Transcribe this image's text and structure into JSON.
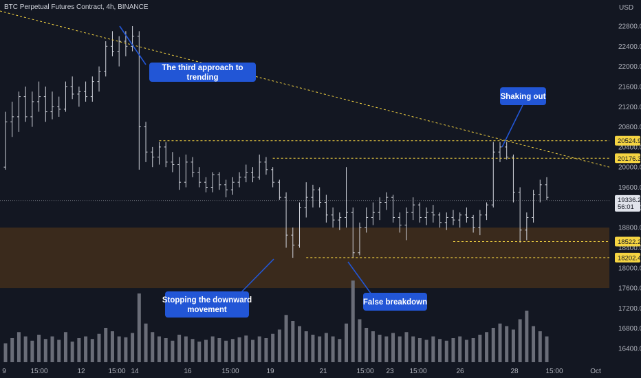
{
  "header": {
    "title": "BTC Perpetual Futures Contract, 4h, BINANCE",
    "currency": "USD"
  },
  "colors": {
    "background": "#131722",
    "bar": "#d1d4dc",
    "volume": "#6a6d78",
    "zone": "#3a2a1c",
    "dashed_line": "#f5d442",
    "annotation": "#2256d6",
    "price_tag_yellow": "#f5d442",
    "current_price_tag": "#e0e3eb"
  },
  "chart_data": {
    "type": "ohlc",
    "symbol": "BTC Perpetual Futures Contract",
    "interval": "4h",
    "exchange": "BINANCE",
    "ylim": [
      16200,
      22900
    ],
    "y_ticks": [
      16400,
      16800,
      17200,
      17600,
      18000,
      18400,
      18800,
      19200,
      19600,
      20000,
      20400,
      20800,
      21200,
      21600,
      22000,
      22400,
      22800
    ],
    "x_ticks": [
      "9",
      "15:00",
      "12",
      "15:00",
      "14",
      "16",
      "15:00",
      "19",
      "21",
      "15:00",
      "23",
      "15:00",
      "26",
      "28",
      "15:00",
      "Oct"
    ],
    "price_levels": [
      20524.9,
      20176.3,
      18522.2,
      18202.4
    ],
    "current_price": {
      "value": "19336.2",
      "countdown": "56:01"
    },
    "support_zone": [
      17600,
      18800
    ],
    "trendline": {
      "from_price": 23100,
      "to_price": 20000
    },
    "annotations": [
      "The third approach to trending",
      "Shaking out",
      "Stopping the downward movement",
      "False breakdown"
    ],
    "ohlc": [
      [
        20000,
        21100,
        19950,
        20900
      ],
      [
        20900,
        21300,
        20600,
        21000
      ],
      [
        21000,
        21500,
        20700,
        21400
      ],
      [
        21400,
        21600,
        20900,
        21000
      ],
      [
        21000,
        21500,
        20800,
        21300
      ],
      [
        21300,
        21700,
        21100,
        21400
      ],
      [
        21400,
        21600,
        20900,
        21100
      ],
      [
        21100,
        21500,
        20950,
        21200
      ],
      [
        21200,
        21400,
        21000,
        21150
      ],
      [
        21150,
        21700,
        21100,
        21600
      ],
      [
        21600,
        21800,
        21350,
        21450
      ],
      [
        21450,
        21600,
        21200,
        21500
      ],
      [
        21500,
        21700,
        21300,
        21400
      ],
      [
        21400,
        21800,
        21300,
        21700
      ],
      [
        21700,
        22000,
        21500,
        21900
      ],
      [
        21900,
        22500,
        21800,
        22400
      ],
      [
        22400,
        22700,
        22200,
        22300
      ],
      [
        22300,
        22600,
        22000,
        22500
      ],
      [
        22500,
        22700,
        22200,
        22400
      ],
      [
        22400,
        22800,
        22300,
        22600
      ],
      [
        22600,
        22700,
        19950,
        20800
      ],
      [
        20800,
        20900,
        20100,
        20300
      ],
      [
        20300,
        20400,
        20000,
        20200
      ],
      [
        20200,
        20500,
        20050,
        20400
      ],
      [
        20400,
        20500,
        20000,
        20100
      ],
      [
        20100,
        20300,
        19900,
        20050
      ],
      [
        20050,
        20200,
        19550,
        19700
      ],
      [
        19700,
        20250,
        19600,
        20100
      ],
      [
        20100,
        20200,
        19800,
        19900
      ],
      [
        19900,
        20000,
        19600,
        19700
      ],
      [
        19700,
        19800,
        19500,
        19600
      ],
      [
        19600,
        19900,
        19500,
        19850
      ],
      [
        19850,
        19900,
        19550,
        19650
      ],
      [
        19650,
        19750,
        19400,
        19550
      ],
      [
        19550,
        19800,
        19450,
        19700
      ],
      [
        19700,
        19900,
        19600,
        19800
      ],
      [
        19800,
        20050,
        19700,
        19900
      ],
      [
        19900,
        20000,
        19700,
        19800
      ],
      [
        19800,
        20250,
        19750,
        20100
      ],
      [
        20100,
        20200,
        19850,
        19950
      ],
      [
        19950,
        20000,
        19600,
        19700
      ],
      [
        19700,
        19750,
        19350,
        19400
      ],
      [
        19400,
        19500,
        18400,
        18650
      ],
      [
        18650,
        18800,
        18200,
        18450
      ],
      [
        18450,
        19300,
        18400,
        19200
      ],
      [
        19200,
        19700,
        19000,
        19400
      ],
      [
        19400,
        19650,
        19200,
        19550
      ],
      [
        19550,
        19600,
        19200,
        19300
      ],
      [
        19300,
        19450,
        18900,
        19050
      ],
      [
        19050,
        19200,
        18800,
        18950
      ],
      [
        18950,
        19100,
        18750,
        19000
      ],
      [
        19000,
        20000,
        18800,
        19100
      ],
      [
        19100,
        19200,
        18200,
        18300
      ],
      [
        18300,
        18900,
        18250,
        18800
      ],
      [
        18800,
        19200,
        18700,
        19000
      ],
      [
        19000,
        19300,
        18850,
        19100
      ],
      [
        19100,
        19400,
        18950,
        19300
      ],
      [
        19300,
        19500,
        19150,
        19400
      ],
      [
        19400,
        19450,
        18900,
        19000
      ],
      [
        19000,
        19100,
        18700,
        18850
      ],
      [
        18850,
        19200,
        18550,
        19100
      ],
      [
        19100,
        19400,
        18950,
        19250
      ],
      [
        19250,
        19300,
        18900,
        19000
      ],
      [
        19000,
        19200,
        18850,
        19100
      ],
      [
        19100,
        19250,
        18900,
        19050
      ],
      [
        19050,
        19100,
        18800,
        18900
      ],
      [
        18900,
        19100,
        18750,
        19000
      ],
      [
        19000,
        19150,
        18850,
        18950
      ],
      [
        18950,
        19100,
        18800,
        19050
      ],
      [
        19050,
        19200,
        18900,
        19000
      ],
      [
        19000,
        19050,
        18700,
        18800
      ],
      [
        18800,
        19150,
        18650,
        19050
      ],
      [
        19050,
        19300,
        18950,
        19250
      ],
      [
        19250,
        20500,
        19200,
        20300
      ],
      [
        20300,
        20500,
        20100,
        20400
      ],
      [
        20400,
        20500,
        20150,
        20200
      ],
      [
        20200,
        20250,
        19300,
        19500
      ],
      [
        19500,
        19600,
        18500,
        18750
      ],
      [
        18750,
        19100,
        18550,
        19000
      ],
      [
        19000,
        19550,
        18900,
        19450
      ],
      [
        19450,
        19750,
        19300,
        19650
      ],
      [
        19650,
        19800,
        19350,
        19400
      ]
    ],
    "volumes": [
      0.22,
      0.28,
      0.35,
      0.3,
      0.25,
      0.32,
      0.27,
      0.3,
      0.26,
      0.35,
      0.24,
      0.28,
      0.3,
      0.27,
      0.33,
      0.4,
      0.36,
      0.3,
      0.29,
      0.34,
      0.8,
      0.45,
      0.35,
      0.3,
      0.28,
      0.25,
      0.32,
      0.3,
      0.27,
      0.24,
      0.26,
      0.3,
      0.28,
      0.25,
      0.27,
      0.29,
      0.31,
      0.26,
      0.3,
      0.28,
      0.33,
      0.38,
      0.55,
      0.48,
      0.42,
      0.36,
      0.32,
      0.3,
      0.34,
      0.3,
      0.27,
      0.45,
      0.95,
      0.5,
      0.4,
      0.36,
      0.32,
      0.3,
      0.34,
      0.3,
      0.35,
      0.3,
      0.28,
      0.26,
      0.3,
      0.27,
      0.25,
      0.28,
      0.3,
      0.26,
      0.28,
      0.32,
      0.35,
      0.4,
      0.45,
      0.42,
      0.38,
      0.5,
      0.6,
      0.42,
      0.36,
      0.3
    ]
  }
}
